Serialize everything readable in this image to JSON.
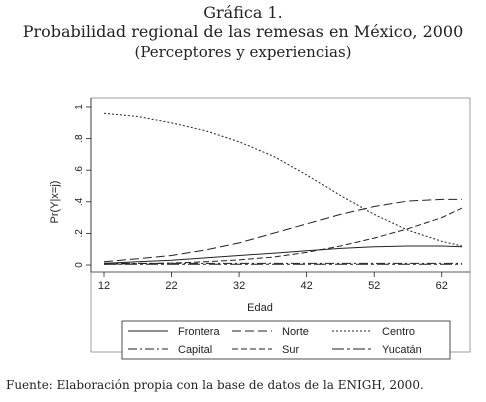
{
  "figure": {
    "title": "Gráfica 1.",
    "subtitle": "Probabilidad regional de las remesas en México, 2000",
    "subtitle2": "(Perceptores y experiencias)",
    "source": "Fuente: Elaboración propia con la base de datos de la ENIGH, 2000."
  },
  "chart_data": {
    "type": "line",
    "xlabel": "Edad",
    "ylabel": "Pr(Y|x=j)",
    "xlim": [
      12,
      65
    ],
    "ylim": [
      0,
      1
    ],
    "xticks": [
      12,
      22,
      32,
      42,
      52,
      62
    ],
    "yticks": [
      0,
      0.2,
      0.4,
      0.6,
      0.8,
      1
    ],
    "ytick_labels": [
      "0",
      ".2",
      ".4",
      ".6",
      ".8",
      "1"
    ],
    "grid": false,
    "legend_position": "bottom",
    "x": [
      12,
      17,
      22,
      27,
      32,
      37,
      42,
      47,
      52,
      57,
      62,
      65
    ],
    "series": [
      {
        "name": "Frontera",
        "dash": "solid",
        "values": [
          0.01,
          0.02,
          0.03,
          0.045,
          0.06,
          0.075,
          0.09,
          0.105,
          0.115,
          0.12,
          0.12,
          0.115
        ]
      },
      {
        "name": "Norte",
        "dash": "longdash",
        "values": [
          0.02,
          0.04,
          0.06,
          0.095,
          0.14,
          0.2,
          0.26,
          0.32,
          0.37,
          0.405,
          0.415,
          0.415
        ]
      },
      {
        "name": "Centro",
        "dash": "shortdash",
        "values": [
          0.96,
          0.94,
          0.9,
          0.85,
          0.78,
          0.69,
          0.57,
          0.44,
          0.32,
          0.22,
          0.15,
          0.12
        ]
      },
      {
        "name": "Capital",
        "dash": "dashdot",
        "values": [
          0.01,
          0.01,
          0.01,
          0.01,
          0.01,
          0.01,
          0.01,
          0.01,
          0.01,
          0.01,
          0.01,
          0.01
        ]
      },
      {
        "name": "Sur",
        "dash": "dash",
        "values": [
          0.005,
          0.008,
          0.012,
          0.02,
          0.032,
          0.05,
          0.08,
          0.12,
          0.17,
          0.23,
          0.3,
          0.36
        ]
      },
      {
        "name": "Yucatán",
        "dash": "dashdotlong",
        "values": [
          0.005,
          0.005,
          0.005,
          0.005,
          0.005,
          0.005,
          0.005,
          0.005,
          0.005,
          0.005,
          0.005,
          0.005
        ]
      }
    ]
  }
}
